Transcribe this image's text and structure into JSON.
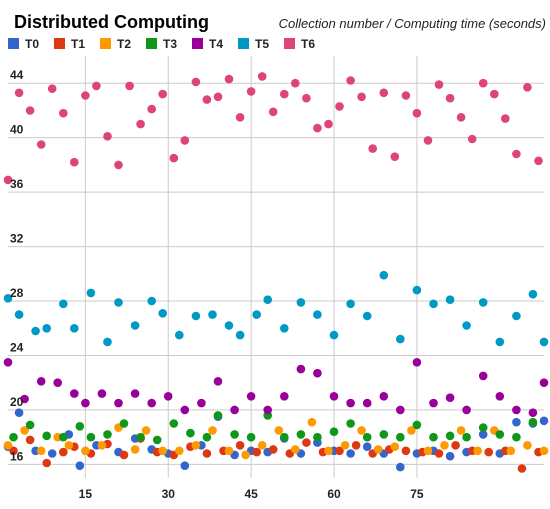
{
  "chart_data": {
    "type": "scatter",
    "title": "Distributed Computing",
    "subtitle": "Collection number / Computing time (seconds)",
    "xlabel": "",
    "ylabel": "",
    "xlim": [
      1,
      98
    ],
    "ylim": [
      15,
      46
    ],
    "grid": true,
    "legend_position": "top",
    "x_ticks": [
      15,
      30,
      45,
      60,
      75
    ],
    "y_ticks": [
      16,
      20,
      24,
      28,
      32,
      36,
      40,
      44
    ],
    "series": [
      {
        "name": "T0",
        "color": "#3366cc",
        "x": [
          1,
          3,
          6,
          9,
          12,
          14,
          17,
          21,
          24,
          27,
          30,
          33,
          36,
          39,
          42,
          45,
          48,
          51,
          54,
          57,
          60,
          63,
          66,
          69,
          72,
          75,
          78,
          81,
          84,
          87,
          90,
          93,
          96,
          98
        ],
        "y": [
          17.3,
          19.8,
          17.0,
          16.8,
          18.2,
          15.9,
          17.4,
          16.9,
          17.9,
          17.1,
          16.8,
          15.9,
          17.4,
          19.5,
          16.7,
          17.0,
          16.9,
          17.9,
          16.8,
          17.6,
          17.0,
          16.8,
          17.3,
          16.8,
          15.8,
          16.8,
          17.0,
          16.6,
          16.9,
          18.2,
          16.8,
          19.1,
          19.0,
          19.2
        ]
      },
      {
        "name": "T1",
        "color": "#dc3912",
        "x": [
          2,
          5,
          8,
          11,
          13,
          16,
          19,
          22,
          25,
          28,
          31,
          34,
          37,
          40,
          43,
          46,
          49,
          52,
          55,
          58,
          61,
          64,
          67,
          70,
          73,
          76,
          79,
          82,
          85,
          88,
          91,
          94,
          97
        ],
        "y": [
          17.0,
          17.8,
          16.1,
          16.9,
          17.3,
          16.8,
          17.5,
          16.7,
          17.9,
          16.9,
          16.7,
          17.3,
          16.8,
          17.0,
          17.4,
          16.9,
          17.1,
          16.8,
          17.6,
          16.9,
          17.0,
          17.4,
          16.8,
          17.1,
          17.0,
          16.9,
          16.8,
          17.4,
          17.0,
          16.9,
          17.0,
          15.7,
          16.9
        ]
      },
      {
        "name": "T2",
        "color": "#ff9900",
        "x": [
          1,
          4,
          7,
          10,
          12,
          15,
          18,
          21,
          24,
          26,
          29,
          32,
          35,
          38,
          41,
          44,
          47,
          50,
          53,
          56,
          59,
          62,
          65,
          68,
          71,
          74,
          77,
          80,
          83,
          86,
          89,
          92,
          95,
          98
        ],
        "y": [
          17.4,
          18.5,
          17.0,
          18.0,
          17.4,
          17.0,
          17.4,
          18.7,
          17.1,
          18.5,
          17.0,
          17.0,
          17.4,
          18.5,
          17.0,
          16.7,
          17.4,
          18.5,
          17.1,
          19.1,
          17.0,
          17.4,
          18.5,
          17.1,
          17.3,
          18.5,
          17.0,
          17.4,
          18.5,
          17.0,
          18.5,
          17.0,
          17.4,
          17.0
        ]
      },
      {
        "name": "T3",
        "color": "#109618",
        "x": [
          2,
          5,
          8,
          11,
          14,
          16,
          19,
          22,
          25,
          28,
          31,
          34,
          37,
          39,
          42,
          45,
          48,
          51,
          54,
          57,
          60,
          63,
          66,
          69,
          72,
          75,
          78,
          81,
          84,
          87,
          90,
          93,
          96
        ],
        "y": [
          18.0,
          18.9,
          18.1,
          18.0,
          18.8,
          18.0,
          18.2,
          19.0,
          18.0,
          17.8,
          19.0,
          18.3,
          18.0,
          19.6,
          18.2,
          18.0,
          19.6,
          18.0,
          18.2,
          18.0,
          18.4,
          19.0,
          18.0,
          18.2,
          18.0,
          18.9,
          18.0,
          18.1,
          18.0,
          18.7,
          18.2,
          18.0,
          19.1
        ]
      },
      {
        "name": "T4",
        "color": "#990099",
        "x": [
          1,
          4,
          7,
          10,
          13,
          15,
          18,
          21,
          24,
          27,
          30,
          33,
          36,
          39,
          42,
          45,
          48,
          51,
          54,
          57,
          60,
          63,
          66,
          69,
          72,
          75,
          78,
          81,
          84,
          87,
          90,
          93,
          96,
          98
        ],
        "y": [
          23.5,
          20.8,
          22.1,
          22.0,
          21.2,
          20.5,
          21.2,
          20.5,
          21.2,
          20.5,
          21.0,
          20.0,
          20.5,
          22.1,
          20.0,
          21.0,
          20.0,
          21.0,
          23.0,
          22.7,
          21.0,
          20.5,
          20.5,
          21.0,
          20.0,
          23.5,
          20.5,
          20.9,
          20.0,
          22.5,
          21.0,
          20.0,
          19.8,
          22.0
        ]
      },
      {
        "name": "T5",
        "color": "#0099c6",
        "x": [
          1,
          3,
          6,
          8,
          11,
          13,
          16,
          19,
          21,
          24,
          27,
          29,
          32,
          35,
          38,
          41,
          43,
          46,
          48,
          51,
          54,
          57,
          60,
          63,
          66,
          69,
          72,
          75,
          78,
          81,
          84,
          87,
          90,
          93,
          96,
          98
        ],
        "y": [
          28.2,
          27.0,
          25.8,
          26.0,
          27.8,
          26.0,
          28.6,
          25.0,
          27.9,
          26.2,
          28.0,
          27.1,
          25.5,
          26.9,
          27.0,
          26.2,
          25.5,
          27.0,
          28.1,
          26.0,
          27.9,
          27.0,
          25.5,
          27.8,
          26.9,
          29.9,
          25.2,
          28.8,
          27.8,
          28.1,
          26.2,
          27.9,
          25.0,
          26.9,
          28.5,
          25.0
        ]
      },
      {
        "name": "T6",
        "color": "#dd4477",
        "x": [
          1,
          3,
          5,
          7,
          9,
          11,
          13,
          15,
          17,
          19,
          21,
          23,
          25,
          27,
          29,
          31,
          33,
          35,
          37,
          39,
          41,
          43,
          45,
          47,
          49,
          51,
          53,
          55,
          57,
          59,
          61,
          63,
          65,
          67,
          69,
          71,
          73,
          75,
          77,
          79,
          81,
          83,
          85,
          87,
          89,
          91,
          93,
          95,
          97
        ],
        "y": [
          36.9,
          43.3,
          42.0,
          39.5,
          43.6,
          41.8,
          38.2,
          43.1,
          43.8,
          40.1,
          38.0,
          43.8,
          41.0,
          42.1,
          43.2,
          38.5,
          39.8,
          44.1,
          42.8,
          43.0,
          44.3,
          41.5,
          43.4,
          44.5,
          41.9,
          43.2,
          44.0,
          42.9,
          40.7,
          41.0,
          42.3,
          44.2,
          43.0,
          39.2,
          43.3,
          38.6,
          43.1,
          41.8,
          39.8,
          43.9,
          42.9,
          41.5,
          39.9,
          44.0,
          43.2,
          41.4,
          38.8,
          43.7,
          38.3
        ]
      }
    ]
  }
}
